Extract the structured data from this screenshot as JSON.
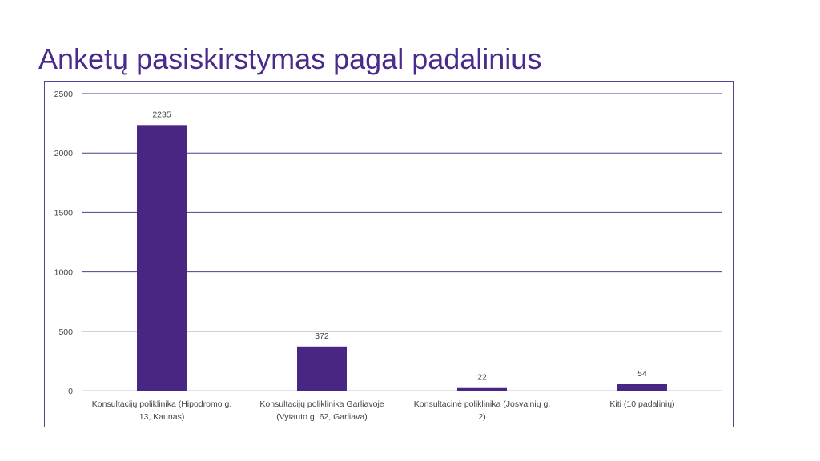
{
  "slide": {
    "title": "Anketų pasiskirstymas pagal padalinius"
  },
  "colors": {
    "title": "#4a2a8a",
    "bar": "#4a2683",
    "grid": "#4b3b8f",
    "frame": "#5b3f99"
  },
  "chart_data": {
    "type": "bar",
    "title": "",
    "xlabel": "",
    "ylabel": "",
    "ylim": [
      0,
      2500
    ],
    "yticks": [
      0,
      500,
      1000,
      1500,
      2000,
      2500
    ],
    "grid": true,
    "legend": "none",
    "categories": [
      [
        "Konsultacijų poliklinika (Hipodromo g.",
        "13, Kaunas)"
      ],
      [
        "Konsultacijų poliklinika Garliavoje",
        "(Vytauto g. 62, Garliava)"
      ],
      [
        "Konsultacinė poliklinika (Josvainių g.",
        "2)"
      ],
      [
        "Kiti (10 padalinių)"
      ]
    ],
    "values": [
      2235,
      372,
      22,
      54
    ],
    "data_labels": [
      "2235",
      "372",
      "22",
      "54"
    ]
  }
}
